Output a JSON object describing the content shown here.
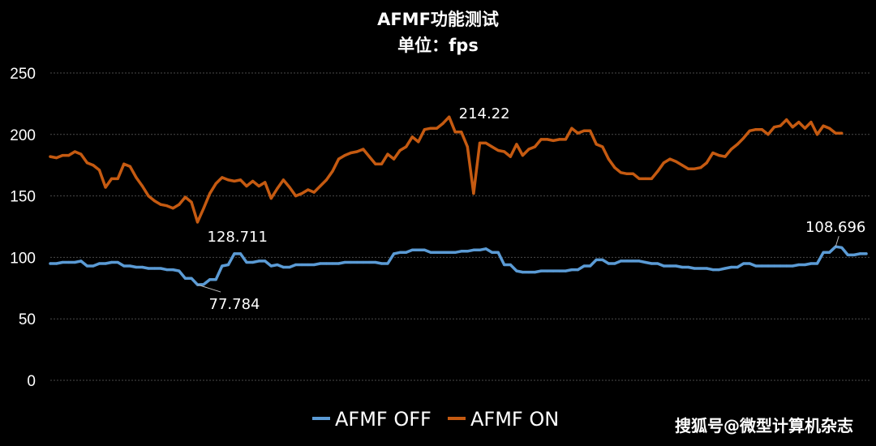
{
  "chart_data": {
    "type": "line",
    "title": "AFMF功能测试",
    "subtitle": "单位：fps",
    "xlabel": "",
    "ylabel": "",
    "ylim": [
      0,
      250
    ],
    "yticks": [
      "0",
      "50",
      "100",
      "150",
      "200",
      "250"
    ],
    "grid": true,
    "legend_position": "bottom",
    "colors": {
      "background": "#000000",
      "grid": "#4a4a4a",
      "afmf_off": "#5b9bd5",
      "afmf_on": "#c55a11"
    },
    "series": [
      {
        "name": "AFMF OFF",
        "color": "#5b9bd5",
        "values": [
          95,
          95,
          96,
          96,
          96,
          97,
          93,
          93,
          95,
          95,
          96,
          96,
          93,
          93,
          92,
          92,
          91,
          91,
          91,
          90,
          90,
          89,
          83,
          83,
          77.784,
          78,
          82,
          82,
          93,
          94,
          103,
          103,
          96,
          96,
          97,
          97,
          93,
          94,
          92,
          92,
          94,
          94,
          94,
          94,
          95,
          95,
          95,
          95,
          96,
          96,
          96,
          96,
          96,
          96,
          95,
          95,
          103,
          104,
          104,
          106,
          106,
          106,
          104,
          104,
          104,
          104,
          104,
          105,
          105,
          106,
          106,
          107,
          104,
          104,
          94,
          94,
          89,
          88,
          88,
          88,
          89,
          89,
          89,
          89,
          89,
          90,
          90,
          93,
          93,
          98,
          98,
          95,
          95,
          97,
          97,
          97,
          97,
          96,
          95,
          95,
          93,
          93,
          93,
          92,
          92,
          91,
          91,
          91,
          90,
          90,
          91,
          92,
          92,
          95,
          95,
          93,
          93,
          93,
          93,
          93,
          93,
          93,
          94,
          94,
          95,
          95,
          104,
          104,
          108.696,
          108,
          102,
          102,
          103,
          103
        ]
      },
      {
        "name": "AFMF ON",
        "color": "#c55a11",
        "values": [
          182,
          181,
          183,
          183,
          186,
          184,
          177,
          175,
          171,
          157,
          164,
          164,
          176,
          174,
          165,
          158,
          150,
          146,
          143,
          142,
          140,
          143,
          149,
          145,
          128.711,
          140,
          152,
          160,
          165,
          163,
          162,
          163,
          158,
          162,
          158,
          161,
          148,
          156,
          163,
          157,
          150,
          152,
          155,
          153,
          158,
          163,
          170,
          180,
          183,
          185,
          186,
          188,
          182,
          176,
          176,
          184,
          180,
          187,
          190,
          198,
          194,
          204,
          205,
          205,
          209,
          214.22,
          202,
          202,
          190,
          152,
          193,
          193,
          190,
          187,
          186,
          182,
          192,
          183,
          188,
          190,
          196,
          196,
          195,
          196,
          196,
          205,
          201,
          203,
          203,
          192,
          190,
          180,
          173,
          169,
          168,
          168,
          164,
          164,
          164,
          170,
          177,
          180,
          178,
          175,
          172,
          172,
          173,
          177,
          185,
          183,
          182,
          188,
          192,
          197,
          203,
          204,
          204,
          200,
          206,
          207,
          212,
          206,
          210,
          205,
          210,
          200,
          207,
          205,
          201,
          201
        ]
      }
    ],
    "annotations": [
      {
        "series": "AFMF ON",
        "index": 24,
        "label": "128.711"
      },
      {
        "series": "AFMF ON",
        "index": 65,
        "label": "214.22"
      },
      {
        "series": "AFMF OFF",
        "index": 24,
        "label": "77.784"
      },
      {
        "series": "AFMF OFF",
        "index": 128,
        "label": "108.696"
      }
    ]
  },
  "watermark": "搜狐号@微型计算机杂志"
}
